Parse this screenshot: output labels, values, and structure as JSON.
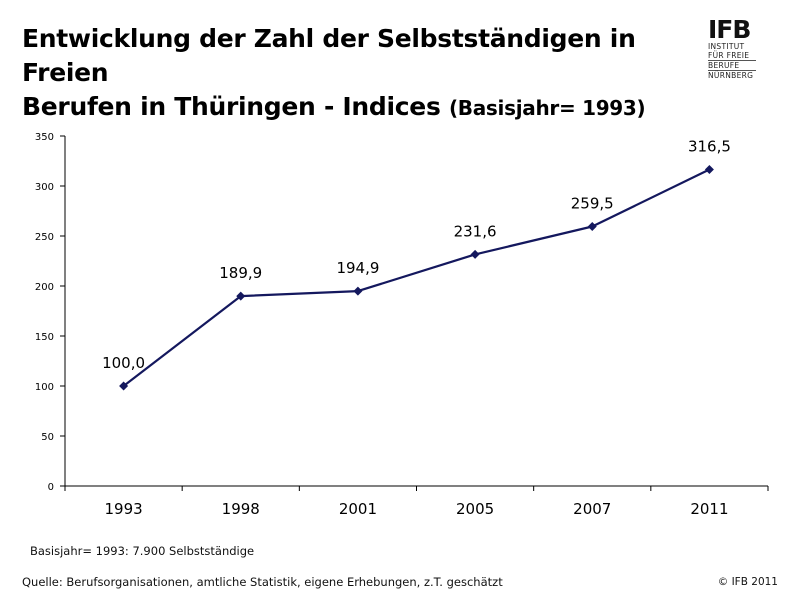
{
  "title": {
    "line1": "Entwicklung der Zahl der Selbstständigen in Freien",
    "line2": "Berufen in Thüringen - Indices",
    "line2_sub": "(Basisjahr= 1993)"
  },
  "logo": {
    "text": "IFB",
    "lines": [
      "INSTITUT",
      "FÜR FREIE",
      "BERUFE",
      "NÜRNBERG"
    ]
  },
  "chart_data": {
    "type": "line",
    "categories": [
      "1993",
      "1998",
      "2001",
      "2005",
      "2007",
      "2011"
    ],
    "series": [
      {
        "values": [
          100.0,
          189.9,
          194.9,
          231.6,
          259.5,
          316.5
        ],
        "labels": [
          "100,0",
          "189,9",
          "194,9",
          "231,6",
          "259,5",
          "316,5"
        ]
      }
    ],
    "ylim": [
      0,
      350
    ],
    "yticks": [
      "0",
      "50",
      "100",
      "150",
      "200",
      "250",
      "300",
      "350"
    ],
    "grid": false,
    "colors": {
      "line": "#14185e",
      "marker": "#14185e",
      "axis": "#000000"
    }
  },
  "footnote": "Basisjahr= 1993: 7.900 Selbstständige",
  "source": "Quelle: Berufsorganisationen, amtliche Statistik, eigene Erhebungen, z.T. geschätzt",
  "copyright": "© IFB 2011"
}
